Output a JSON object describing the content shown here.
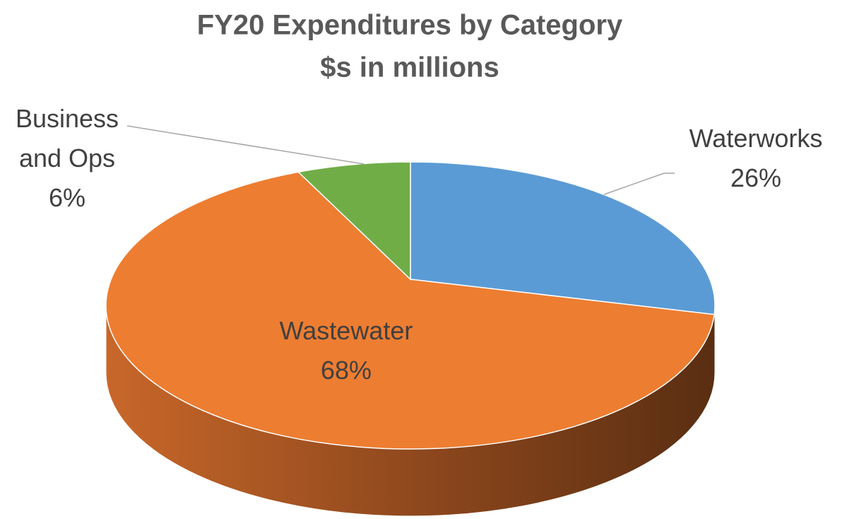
{
  "chart_data": {
    "type": "pie",
    "title": "FY20 Expenditures by Category",
    "subtitle": "$s in millions",
    "categories": [
      "Waterworks",
      "Wastewater",
      "Business and Ops"
    ],
    "values": [
      26,
      68,
      6
    ],
    "value_labels": [
      "26%",
      "68%",
      "6%"
    ],
    "colors": [
      "#5b9bd5",
      "#ed7d31",
      "#70ad47"
    ]
  }
}
